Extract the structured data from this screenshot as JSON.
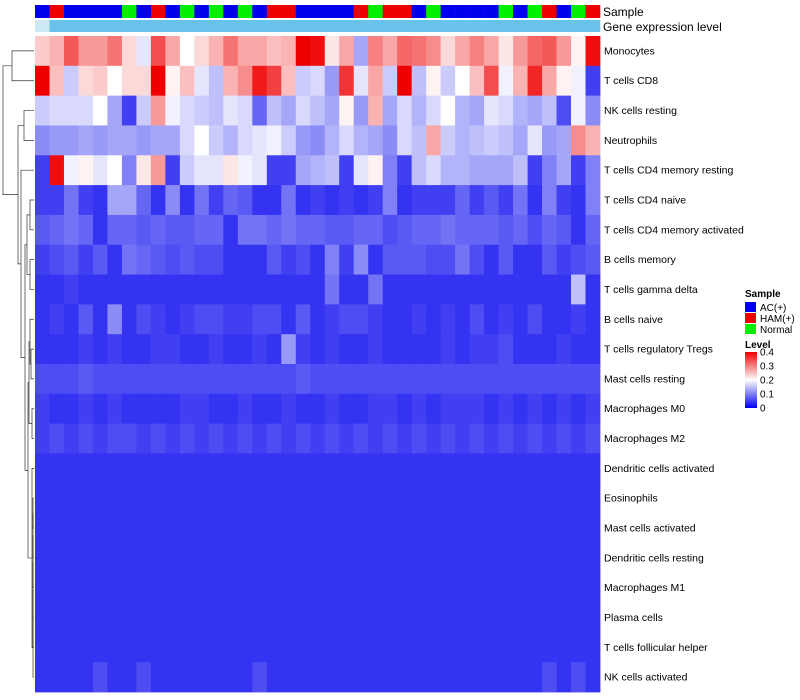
{
  "chart_data": {
    "type": "heatmap",
    "title": "",
    "annotation_tracks": [
      "Sample",
      "Gene expression level"
    ],
    "rows": [
      "Monocytes",
      "T cells CD8",
      "NK cells resting",
      "Neutrophils",
      "T cells CD4 memory resting",
      "T cells CD4 naive",
      "T cells CD4 memory activated",
      "B cells memory",
      "T cells gamma delta",
      "B cells naive",
      "T cells regulatory  Tregs",
      "Mast cells resting",
      "Macrophages M0",
      "Macrophages M2",
      "Dendritic cells activated",
      "Eosinophils",
      "Mast cells activated",
      "Dendritic cells resting",
      "Macrophages M1",
      "Plasma cells",
      "T cells follicular helper",
      "NK cells activated"
    ],
    "column_count": 39,
    "sample_groups": [
      "AC",
      "HAM",
      "AC",
      "AC",
      "AC",
      "AC",
      "Normal",
      "AC",
      "HAM",
      "AC",
      "Normal",
      "AC",
      "Normal",
      "AC",
      "Normal",
      "AC",
      "HAM",
      "HAM",
      "AC",
      "AC",
      "AC",
      "AC",
      "HAM",
      "Normal",
      "HAM",
      "HAM",
      "AC",
      "Normal",
      "AC",
      "AC",
      "AC",
      "AC",
      "Normal",
      "AC",
      "Normal",
      "HAM",
      "AC",
      "Normal",
      "HAM"
    ],
    "values": [
      [
        0.24,
        0.26,
        0.33,
        0.28,
        0.28,
        0.31,
        0.23,
        0.18,
        0.34,
        0.27,
        0.2,
        0.23,
        0.26,
        0.31,
        0.27,
        0.27,
        0.25,
        0.26,
        0.4,
        0.39,
        0.22,
        0.27,
        0.13,
        0.3,
        0.27,
        0.32,
        0.31,
        0.29,
        0.23,
        0.27,
        0.3,
        0.27,
        0.22,
        0.28,
        0.32,
        0.33,
        0.28,
        0.21,
        0.39
      ],
      [
        0.4,
        0.25,
        0.16,
        0.23,
        0.24,
        0.2,
        0.23,
        0.23,
        0.4,
        0.21,
        0.25,
        0.18,
        0.15,
        0.26,
        0.29,
        0.38,
        0.35,
        0.25,
        0.16,
        0.17,
        0.12,
        0.36,
        0.18,
        0.27,
        0.16,
        0.4,
        0.15,
        0.21,
        0.16,
        0.2,
        0.25,
        0.34,
        0.19,
        0.26,
        0.37,
        0.27,
        0.21,
        0.19,
        0.05
      ],
      [
        0.16,
        0.17,
        0.17,
        0.17,
        0.2,
        0.13,
        0.05,
        0.16,
        0.28,
        0.19,
        0.17,
        0.16,
        0.15,
        0.18,
        0.17,
        0.08,
        0.15,
        0.13,
        0.17,
        0.15,
        0.13,
        0.21,
        0.12,
        0.26,
        0.13,
        0.17,
        0.14,
        0.17,
        0.2,
        0.14,
        0.13,
        0.18,
        0.17,
        0.14,
        0.13,
        0.15,
        0.06,
        0.19,
        0.11
      ],
      [
        0.11,
        0.12,
        0.12,
        0.13,
        0.12,
        0.13,
        0.13,
        0.12,
        0.13,
        0.13,
        0.17,
        0.2,
        0.16,
        0.14,
        0.17,
        0.18,
        0.19,
        0.16,
        0.12,
        0.11,
        0.14,
        0.17,
        0.14,
        0.13,
        0.11,
        0.17,
        0.15,
        0.27,
        0.16,
        0.14,
        0.15,
        0.16,
        0.15,
        0.13,
        0.18,
        0.12,
        0.13,
        0.29,
        0.26
      ],
      [
        0.05,
        0.39,
        0.19,
        0.21,
        0.18,
        0.2,
        0.1,
        0.22,
        0.28,
        0.05,
        0.16,
        0.18,
        0.18,
        0.22,
        0.19,
        0.18,
        0.05,
        0.05,
        0.13,
        0.14,
        0.15,
        0.05,
        0.18,
        0.21,
        0.1,
        0.05,
        0.15,
        0.17,
        0.14,
        0.14,
        0.13,
        0.13,
        0.13,
        0.15,
        0.05,
        0.1,
        0.13,
        0.05,
        0.1
      ],
      [
        0.05,
        0.05,
        0.09,
        0.05,
        0.04,
        0.13,
        0.13,
        0.08,
        0.04,
        0.11,
        0.04,
        0.09,
        0.05,
        0.08,
        0.07,
        0.04,
        0.04,
        0.09,
        0.04,
        0.05,
        0.04,
        0.05,
        0.04,
        0.05,
        0.1,
        0.04,
        0.05,
        0.05,
        0.05,
        0.08,
        0.05,
        0.07,
        0.05,
        0.09,
        0.04,
        0.1,
        0.05,
        0.04,
        0.1
      ],
      [
        0.07,
        0.08,
        0.09,
        0.08,
        0.04,
        0.08,
        0.08,
        0.07,
        0.08,
        0.07,
        0.07,
        0.08,
        0.08,
        0.04,
        0.09,
        0.09,
        0.08,
        0.09,
        0.08,
        0.08,
        0.07,
        0.07,
        0.08,
        0.08,
        0.06,
        0.07,
        0.08,
        0.08,
        0.09,
        0.08,
        0.08,
        0.08,
        0.07,
        0.08,
        0.06,
        0.08,
        0.07,
        0.04,
        0.08
      ],
      [
        0.05,
        0.06,
        0.07,
        0.05,
        0.07,
        0.04,
        0.09,
        0.08,
        0.07,
        0.06,
        0.07,
        0.06,
        0.06,
        0.04,
        0.04,
        0.04,
        0.07,
        0.05,
        0.06,
        0.04,
        0.1,
        0.05,
        0.11,
        0.04,
        0.07,
        0.07,
        0.07,
        0.06,
        0.06,
        0.09,
        0.06,
        0.04,
        0.07,
        0.04,
        0.04,
        0.07,
        0.05,
        0.06,
        0.07
      ],
      [
        0.04,
        0.04,
        0.05,
        0.04,
        0.04,
        0.04,
        0.04,
        0.04,
        0.04,
        0.04,
        0.04,
        0.04,
        0.04,
        0.04,
        0.04,
        0.04,
        0.04,
        0.04,
        0.04,
        0.04,
        0.09,
        0.04,
        0.04,
        0.09,
        0.04,
        0.04,
        0.04,
        0.04,
        0.04,
        0.04,
        0.04,
        0.04,
        0.04,
        0.04,
        0.04,
        0.04,
        0.04,
        0.15,
        0.04
      ],
      [
        0.04,
        0.05,
        0.04,
        0.07,
        0.04,
        0.11,
        0.04,
        0.06,
        0.05,
        0.04,
        0.05,
        0.06,
        0.06,
        0.05,
        0.05,
        0.06,
        0.06,
        0.04,
        0.07,
        0.04,
        0.05,
        0.06,
        0.06,
        0.05,
        0.04,
        0.04,
        0.05,
        0.04,
        0.05,
        0.04,
        0.06,
        0.04,
        0.05,
        0.04,
        0.06,
        0.04,
        0.04,
        0.05,
        0.04
      ],
      [
        0.04,
        0.04,
        0.04,
        0.05,
        0.04,
        0.05,
        0.04,
        0.04,
        0.05,
        0.05,
        0.04,
        0.04,
        0.05,
        0.04,
        0.04,
        0.05,
        0.04,
        0.12,
        0.05,
        0.04,
        0.05,
        0.04,
        0.04,
        0.05,
        0.04,
        0.04,
        0.04,
        0.04,
        0.05,
        0.04,
        0.05,
        0.05,
        0.06,
        0.04,
        0.04,
        0.04,
        0.05,
        0.04,
        0.04
      ],
      [
        0.06,
        0.06,
        0.06,
        0.07,
        0.06,
        0.06,
        0.06,
        0.06,
        0.06,
        0.06,
        0.06,
        0.06,
        0.06,
        0.06,
        0.06,
        0.06,
        0.06,
        0.06,
        0.07,
        0.06,
        0.06,
        0.06,
        0.06,
        0.06,
        0.06,
        0.06,
        0.06,
        0.06,
        0.06,
        0.06,
        0.06,
        0.06,
        0.06,
        0.06,
        0.06,
        0.06,
        0.06,
        0.06,
        0.06
      ],
      [
        0.05,
        0.04,
        0.04,
        0.05,
        0.04,
        0.05,
        0.04,
        0.04,
        0.04,
        0.04,
        0.05,
        0.05,
        0.04,
        0.04,
        0.05,
        0.04,
        0.04,
        0.05,
        0.04,
        0.04,
        0.05,
        0.04,
        0.04,
        0.05,
        0.05,
        0.04,
        0.05,
        0.04,
        0.05,
        0.05,
        0.05,
        0.04,
        0.05,
        0.04,
        0.05,
        0.04,
        0.05,
        0.04,
        0.05
      ],
      [
        0.05,
        0.06,
        0.05,
        0.06,
        0.05,
        0.06,
        0.06,
        0.05,
        0.06,
        0.05,
        0.06,
        0.05,
        0.06,
        0.05,
        0.06,
        0.05,
        0.06,
        0.05,
        0.06,
        0.05,
        0.06,
        0.05,
        0.06,
        0.05,
        0.06,
        0.05,
        0.06,
        0.05,
        0.06,
        0.05,
        0.06,
        0.05,
        0.06,
        0.05,
        0.06,
        0.05,
        0.06,
        0.05,
        0.06
      ],
      [
        0.04,
        0.04,
        0.04,
        0.04,
        0.04,
        0.04,
        0.04,
        0.04,
        0.04,
        0.04,
        0.04,
        0.04,
        0.04,
        0.04,
        0.04,
        0.04,
        0.04,
        0.04,
        0.04,
        0.04,
        0.04,
        0.04,
        0.04,
        0.04,
        0.04,
        0.04,
        0.04,
        0.04,
        0.04,
        0.04,
        0.04,
        0.04,
        0.04,
        0.04,
        0.04,
        0.04,
        0.04,
        0.04,
        0.04
      ],
      [
        0.04,
        0.04,
        0.04,
        0.04,
        0.04,
        0.04,
        0.04,
        0.04,
        0.04,
        0.04,
        0.04,
        0.04,
        0.04,
        0.04,
        0.04,
        0.04,
        0.04,
        0.04,
        0.04,
        0.04,
        0.04,
        0.04,
        0.04,
        0.04,
        0.04,
        0.04,
        0.04,
        0.04,
        0.04,
        0.04,
        0.04,
        0.04,
        0.04,
        0.04,
        0.04,
        0.04,
        0.04,
        0.04,
        0.04
      ],
      [
        0.04,
        0.04,
        0.04,
        0.04,
        0.04,
        0.04,
        0.04,
        0.04,
        0.04,
        0.04,
        0.04,
        0.04,
        0.04,
        0.04,
        0.04,
        0.04,
        0.04,
        0.04,
        0.04,
        0.04,
        0.04,
        0.04,
        0.04,
        0.04,
        0.04,
        0.04,
        0.04,
        0.04,
        0.04,
        0.04,
        0.04,
        0.04,
        0.04,
        0.04,
        0.04,
        0.04,
        0.04,
        0.04,
        0.04
      ],
      [
        0.04,
        0.04,
        0.04,
        0.04,
        0.04,
        0.04,
        0.04,
        0.04,
        0.04,
        0.04,
        0.04,
        0.04,
        0.04,
        0.04,
        0.04,
        0.04,
        0.04,
        0.04,
        0.04,
        0.04,
        0.04,
        0.04,
        0.04,
        0.04,
        0.04,
        0.04,
        0.04,
        0.04,
        0.04,
        0.04,
        0.04,
        0.04,
        0.04,
        0.04,
        0.04,
        0.04,
        0.04,
        0.04,
        0.04
      ],
      [
        0.04,
        0.04,
        0.04,
        0.04,
        0.04,
        0.04,
        0.04,
        0.04,
        0.04,
        0.04,
        0.04,
        0.04,
        0.04,
        0.04,
        0.04,
        0.04,
        0.04,
        0.04,
        0.04,
        0.04,
        0.04,
        0.04,
        0.04,
        0.04,
        0.04,
        0.04,
        0.04,
        0.04,
        0.04,
        0.04,
        0.04,
        0.04,
        0.04,
        0.04,
        0.04,
        0.04,
        0.04,
        0.04,
        0.04
      ],
      [
        0.04,
        0.04,
        0.04,
        0.04,
        0.04,
        0.04,
        0.04,
        0.04,
        0.04,
        0.04,
        0.04,
        0.04,
        0.04,
        0.04,
        0.04,
        0.04,
        0.04,
        0.04,
        0.04,
        0.04,
        0.04,
        0.04,
        0.04,
        0.04,
        0.04,
        0.04,
        0.04,
        0.04,
        0.04,
        0.04,
        0.04,
        0.04,
        0.04,
        0.04,
        0.04,
        0.04,
        0.04,
        0.04,
        0.04
      ],
      [
        0.04,
        0.04,
        0.04,
        0.04,
        0.04,
        0.04,
        0.04,
        0.04,
        0.04,
        0.04,
        0.04,
        0.04,
        0.04,
        0.04,
        0.04,
        0.04,
        0.04,
        0.04,
        0.04,
        0.04,
        0.04,
        0.04,
        0.04,
        0.04,
        0.04,
        0.04,
        0.04,
        0.04,
        0.04,
        0.04,
        0.04,
        0.04,
        0.04,
        0.04,
        0.04,
        0.04,
        0.04,
        0.04,
        0.04
      ],
      [
        0.04,
        0.04,
        0.04,
        0.04,
        0.06,
        0.04,
        0.04,
        0.06,
        0.04,
        0.04,
        0.04,
        0.04,
        0.04,
        0.04,
        0.04,
        0.06,
        0.04,
        0.04,
        0.04,
        0.04,
        0.04,
        0.04,
        0.04,
        0.04,
        0.04,
        0.04,
        0.04,
        0.04,
        0.04,
        0.04,
        0.04,
        0.04,
        0.04,
        0.04,
        0.04,
        0.06,
        0.04,
        0.06,
        0.04
      ]
    ],
    "legend": {
      "sample_title": "Sample",
      "sample_entries": [
        {
          "key": "AC",
          "label": "AC(+)",
          "color": "#0000ee"
        },
        {
          "key": "HAM",
          "label": "HAM(+)",
          "color": "#ee0000"
        },
        {
          "key": "Normal",
          "label": "Normal",
          "color": "#00ee00"
        }
      ],
      "level_title": "Level",
      "level_ticks": [
        0.4,
        0.3,
        0.2,
        0.1,
        0
      ],
      "level_range": [
        0,
        0.4
      ],
      "placement": "right"
    },
    "colors": {
      "low": "#0000ee",
      "mid": "#ffffff",
      "high": "#ee0000",
      "expression_track": "#69c2ea",
      "expression_track_first": "#cde9f6"
    },
    "dendrogram": true
  }
}
